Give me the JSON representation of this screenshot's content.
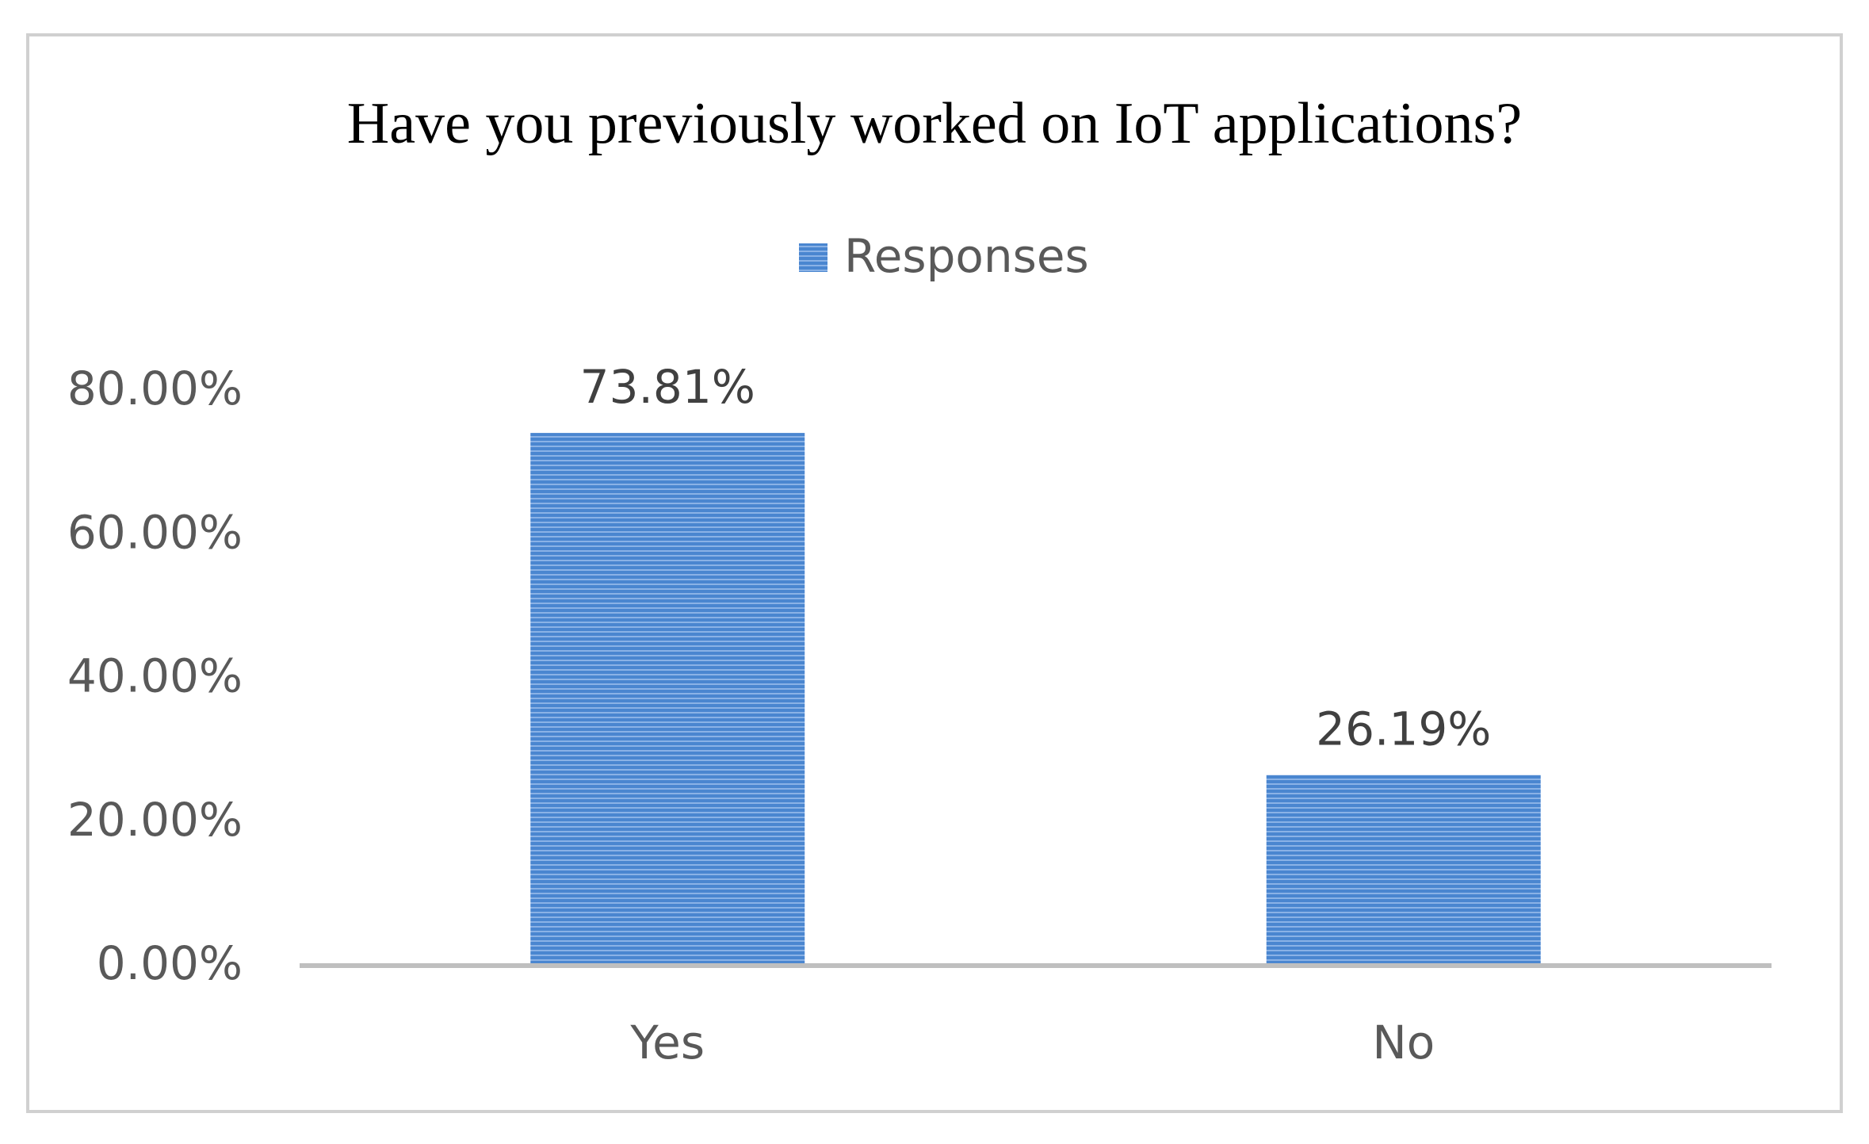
{
  "chart_data": {
    "type": "bar",
    "title": "Have you previously worked on IoT applications?",
    "categories": [
      "Yes",
      "No"
    ],
    "series": [
      {
        "name": "Responses",
        "values": [
          73.81,
          26.19
        ],
        "color": "#4a86d0"
      }
    ],
    "data_labels": [
      "73.81%",
      "26.19%"
    ],
    "y_ticks": [
      "0.00%",
      "20.00%",
      "40.00%",
      "60.00%",
      "80.00%"
    ],
    "ylim": [
      0,
      80
    ],
    "grid": false,
    "legend_position": "top",
    "xlabel": "",
    "ylabel": ""
  }
}
